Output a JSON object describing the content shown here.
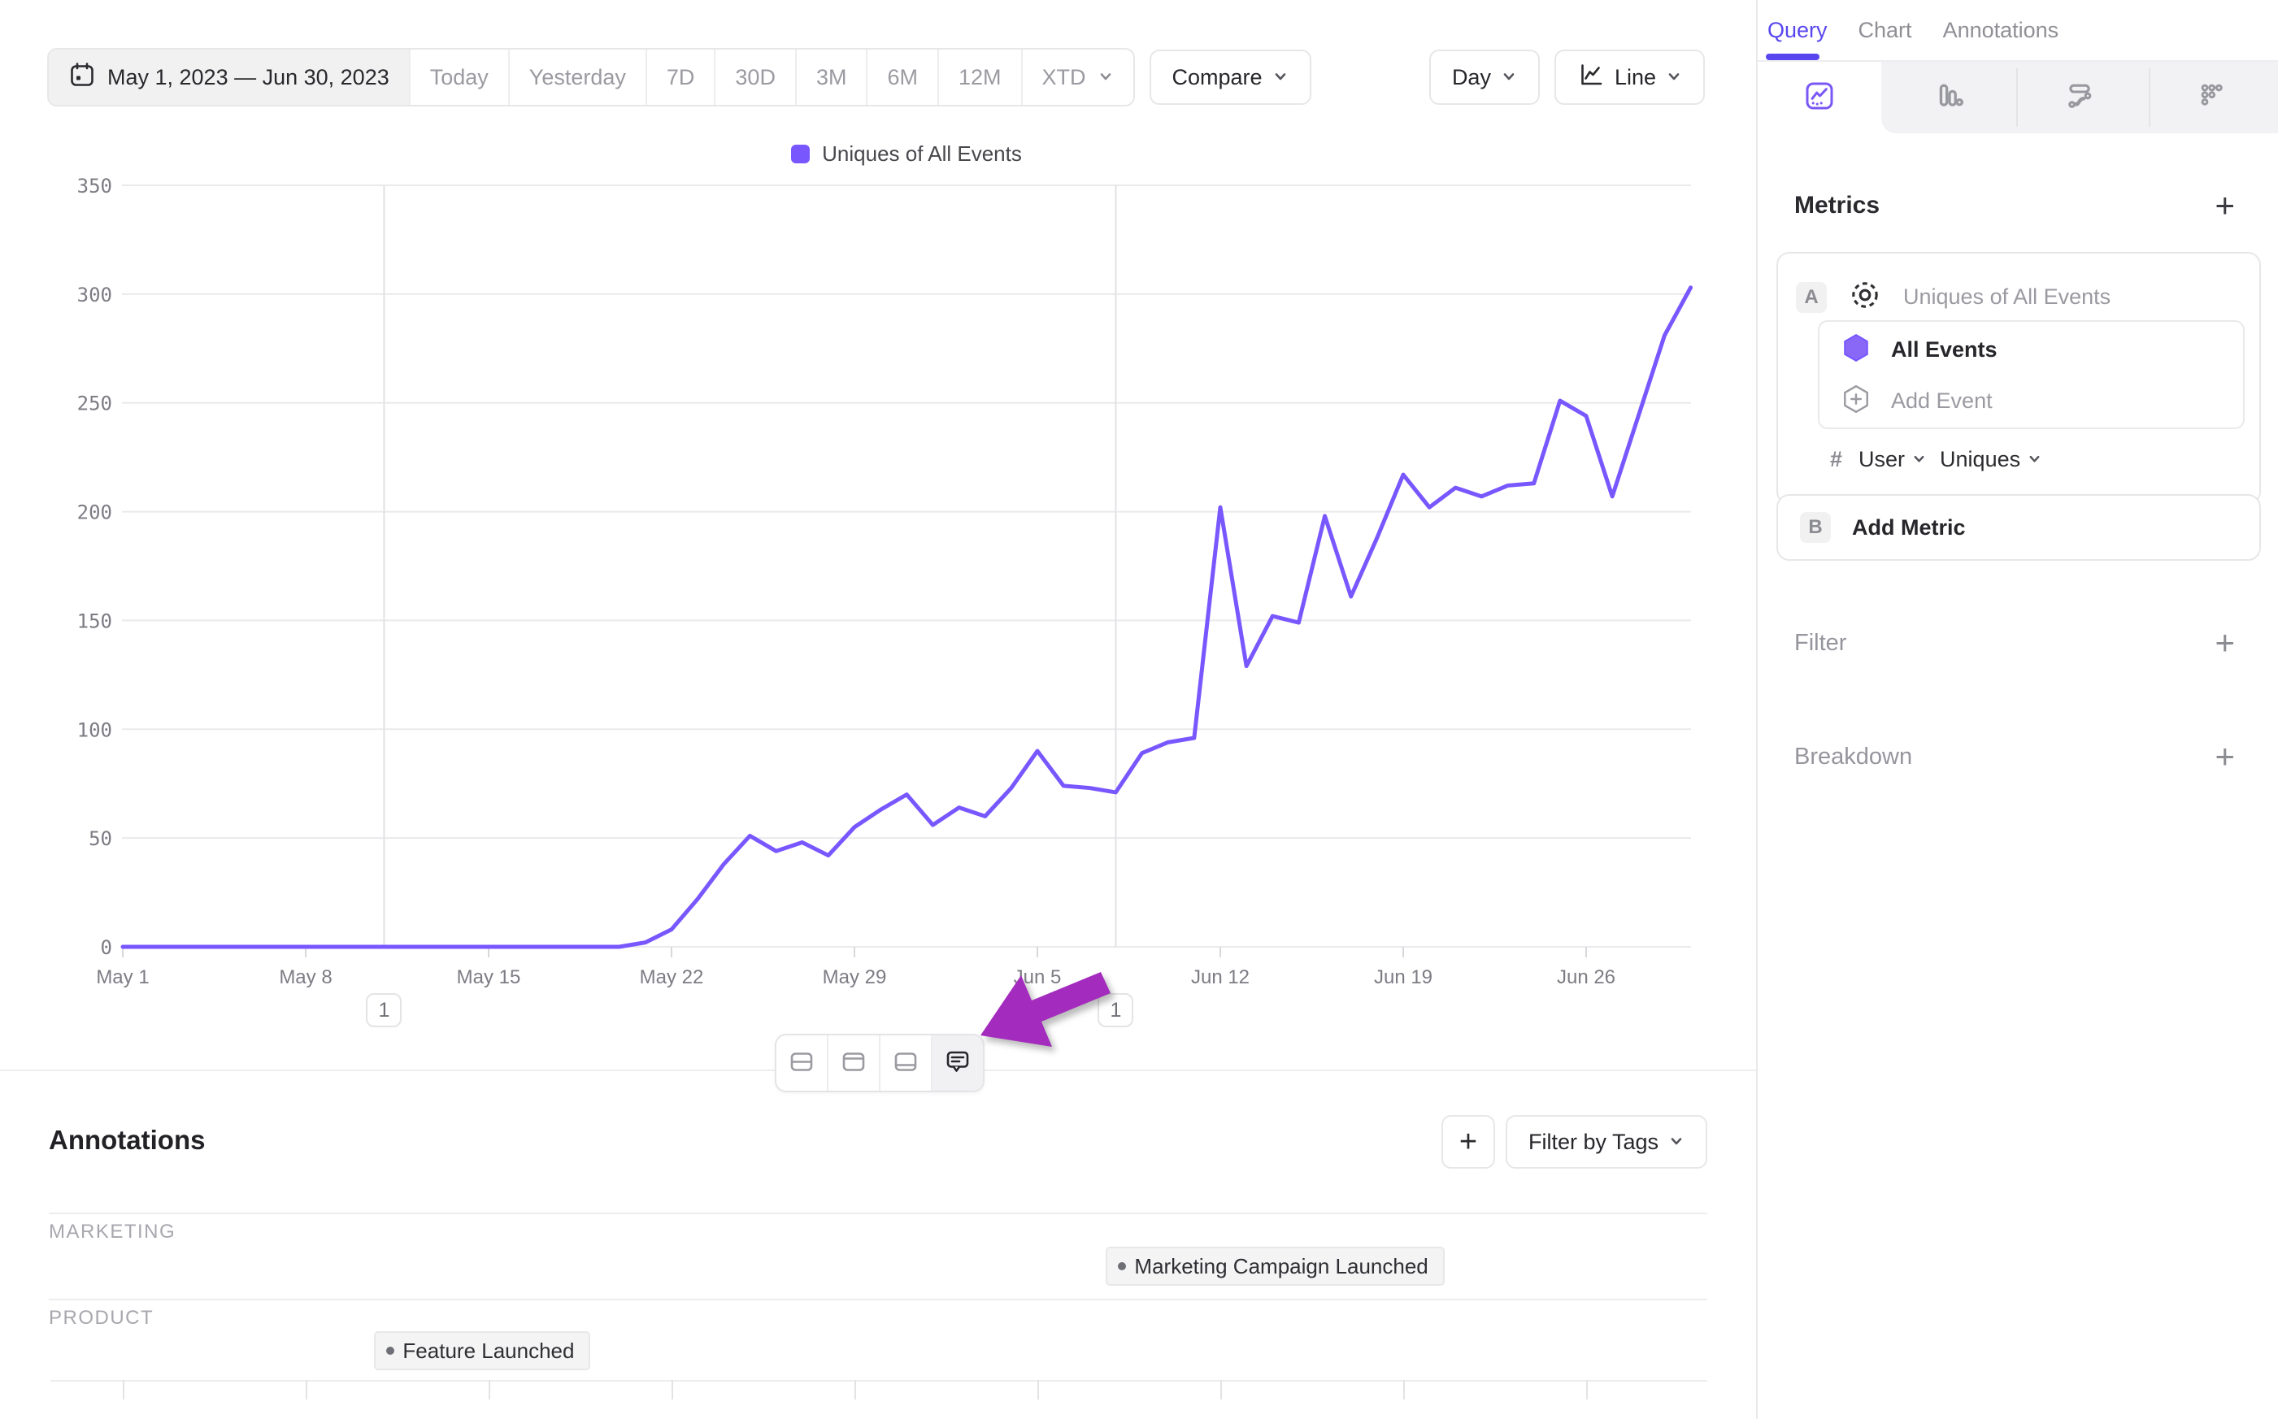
{
  "toolbar": {
    "date_range": "May 1, 2023 — Jun 30, 2023",
    "presets": [
      "Today",
      "Yesterday",
      "7D",
      "30D",
      "3M",
      "6M",
      "12M"
    ],
    "xtd_label": "XTD",
    "compare_label": "Compare",
    "granularity_label": "Day",
    "chart_type_label": "Line"
  },
  "legend": {
    "label": "Uniques of All Events",
    "color": "#7857ff"
  },
  "chart_data": {
    "type": "line",
    "title": "",
    "xlabel": "",
    "ylabel": "",
    "ylim": [
      0,
      350
    ],
    "y_ticks": [
      0,
      50,
      100,
      150,
      200,
      250,
      300,
      350
    ],
    "grid": "horizontal",
    "legend_position": "top-center",
    "start_date": "2023-05-01",
    "x_tick_labels": [
      "May 1",
      "May 8",
      "May 15",
      "May 22",
      "May 29",
      "Jun 5",
      "Jun 12",
      "Jun 19",
      "Jun 26"
    ],
    "x_tick_day_indices": [
      0,
      7,
      14,
      21,
      28,
      35,
      42,
      49,
      56
    ],
    "annotation_day_indices": [
      10,
      38
    ],
    "series": [
      {
        "name": "Uniques of All Events",
        "color": "#7857ff",
        "values": [
          0,
          0,
          0,
          0,
          0,
          0,
          0,
          0,
          0,
          0,
          0,
          0,
          0,
          0,
          0,
          0,
          0,
          0,
          0,
          0,
          2,
          8,
          22,
          38,
          51,
          44,
          48,
          42,
          55,
          63,
          70,
          56,
          64,
          60,
          73,
          90,
          74,
          73,
          71,
          89,
          94,
          96,
          202,
          129,
          152,
          149,
          198,
          161,
          188,
          217,
          202,
          211,
          207,
          212,
          213,
          251,
          244,
          207,
          244,
          281,
          303
        ]
      }
    ]
  },
  "annotations_panel": {
    "title": "Annotations",
    "filter_button": "Filter by Tags",
    "groups": [
      {
        "category": "MARKETING",
        "items": [
          {
            "label": "Marketing Campaign Launched",
            "marker": "1",
            "day_index": 38
          }
        ]
      },
      {
        "category": "PRODUCT",
        "items": [
          {
            "label": "Feature Launched",
            "marker": "1",
            "day_index": 10
          }
        ]
      }
    ]
  },
  "sidebar": {
    "tabs": [
      {
        "label": "Query"
      },
      {
        "label": "Chart"
      },
      {
        "label": "Annotations"
      }
    ],
    "metrics": {
      "title": "Metrics",
      "metric_a": {
        "badge": "A",
        "name": "Uniques of All Events",
        "event_label": "All Events",
        "add_event_label": "Add Event",
        "count_symbol": "#",
        "selectors": [
          "User",
          "Uniques"
        ]
      },
      "metric_b": {
        "badge": "B",
        "name": "Add Metric"
      }
    },
    "filter_label": "Filter",
    "breakdown_label": "Breakdown"
  },
  "icons": {
    "plus": "+"
  },
  "colors": {
    "accent_purple": "#7857ff",
    "tab_purple": "#5847ee",
    "arrow_purple": "#a32bbd",
    "grid": "#eaeaec",
    "border": "#e7e7e9",
    "text_dark": "#26262b",
    "text_gray": "#9a9aa1"
  }
}
